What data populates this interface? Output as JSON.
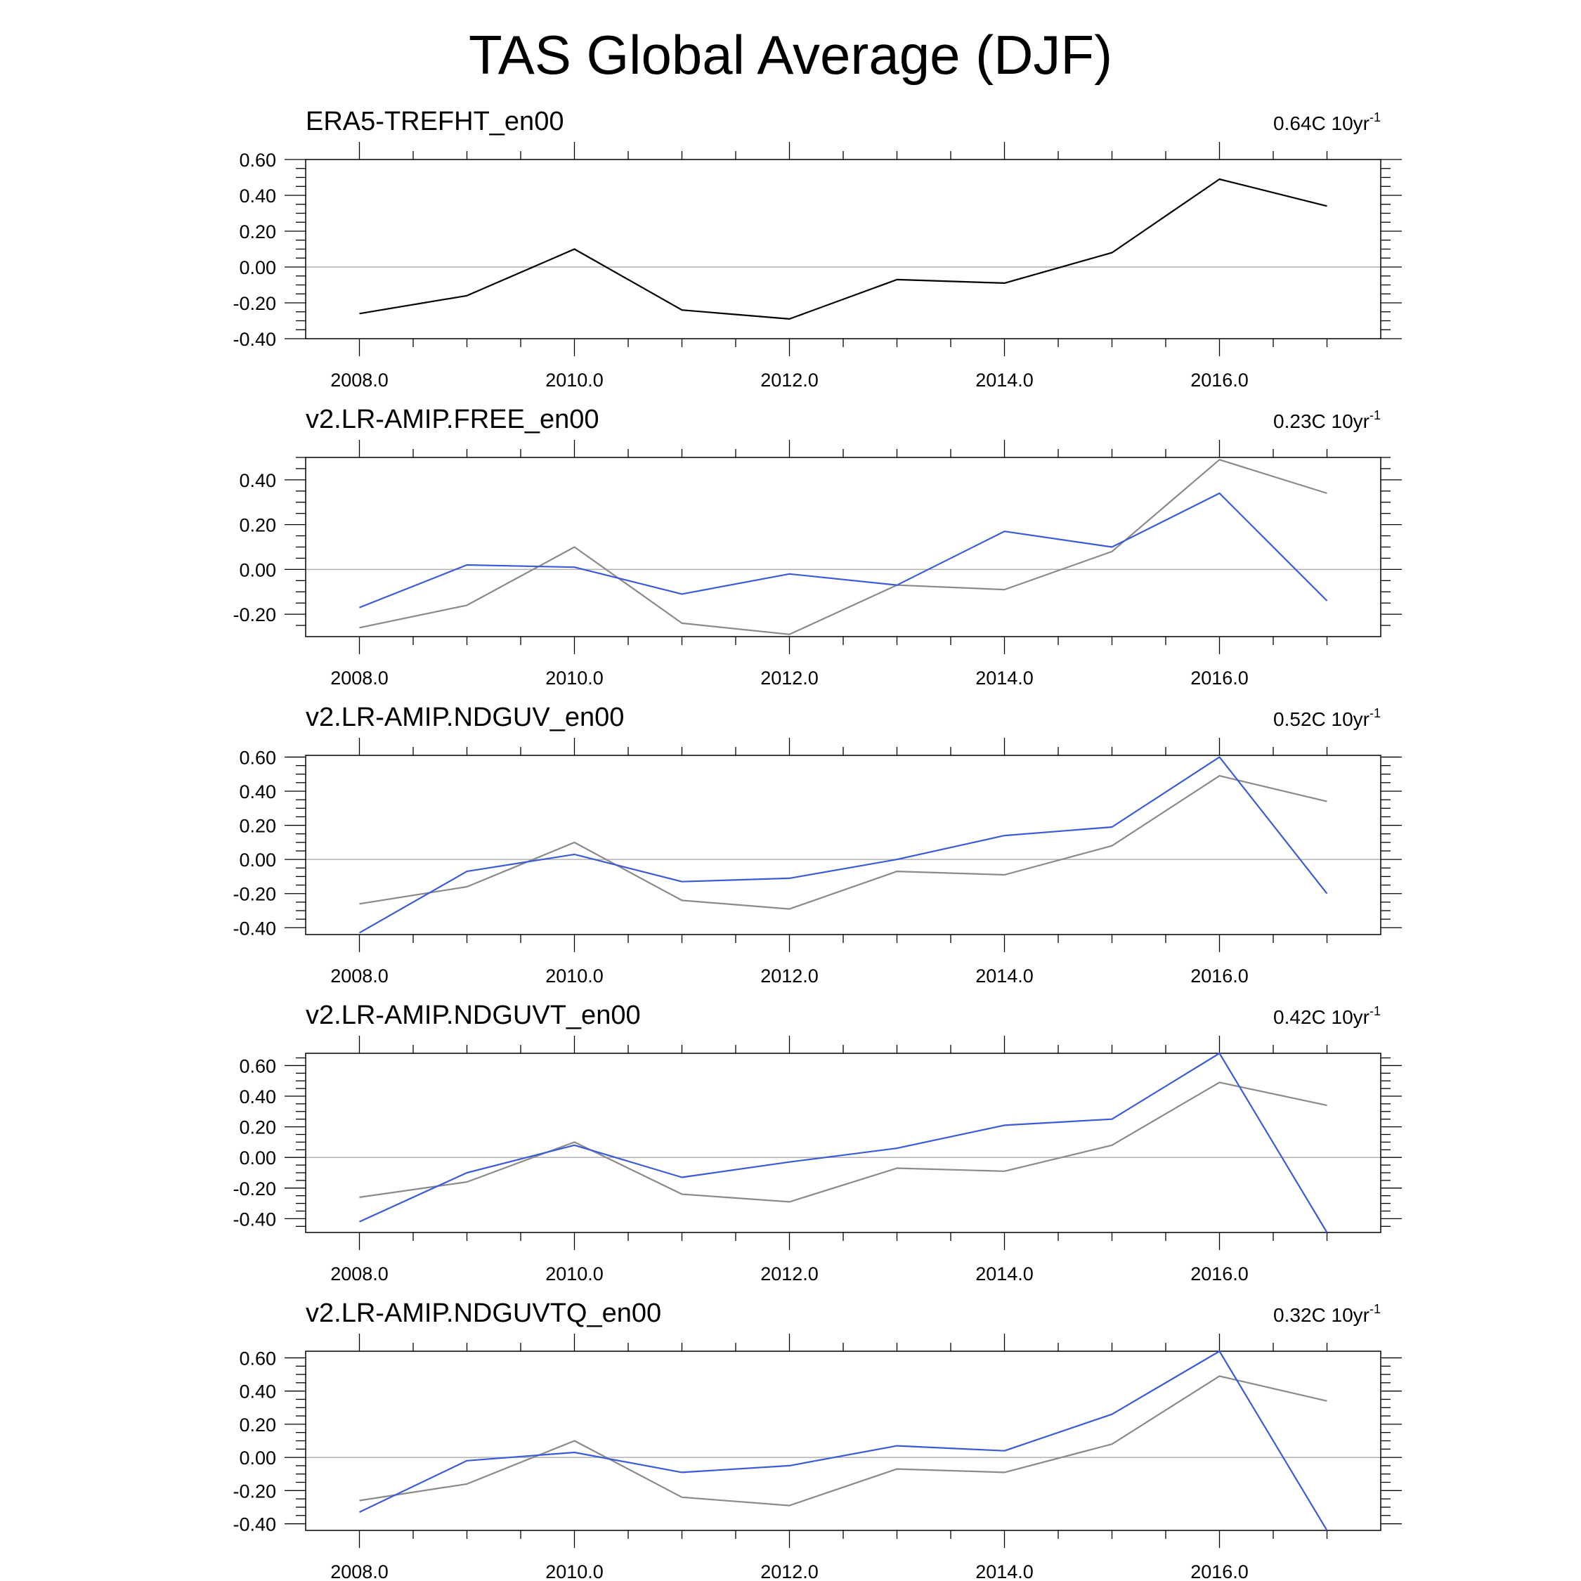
{
  "title": "TAS Global Average (DJF)",
  "colors": {
    "reference": "#8a8a8a",
    "reference_top": "#000000",
    "model": "#3a5bd9",
    "zero_line": "#b0b0b0",
    "frame": "#000000"
  },
  "chart_data": [
    {
      "type": "line",
      "title": "ERA5-TREFHT_en00",
      "trend_value": "0.64C 10yr",
      "trend_exp": "-1",
      "x": [
        2008,
        2009,
        2010,
        2011,
        2012,
        2013,
        2014,
        2015,
        2016,
        2017
      ],
      "xticks": [
        "2008.0",
        "2010.0",
        "2012.0",
        "2014.0",
        "2016.0"
      ],
      "xticks_values": [
        2008,
        2010,
        2012,
        2014,
        2016
      ],
      "xlim": [
        2007.5,
        2017.5
      ],
      "ylim": [
        -0.4,
        0.6
      ],
      "yticks": [
        "0.60",
        "0.40",
        "0.20",
        "0.00",
        "-0.20",
        "-0.40"
      ],
      "yticks_values": [
        0.6,
        0.4,
        0.2,
        0.0,
        -0.2,
        -0.4
      ],
      "series": [
        {
          "name": "ERA5-TREFHT",
          "role": "reference_top",
          "values": [
            -0.26,
            -0.16,
            0.1,
            -0.24,
            -0.29,
            -0.07,
            -0.09,
            0.08,
            0.49,
            0.34
          ]
        }
      ]
    },
    {
      "type": "line",
      "title": "v2.LR-AMIP.FREE_en00",
      "trend_value": "0.23C 10yr",
      "trend_exp": "-1",
      "x": [
        2008,
        2009,
        2010,
        2011,
        2012,
        2013,
        2014,
        2015,
        2016,
        2017
      ],
      "xticks": [
        "2008.0",
        "2010.0",
        "2012.0",
        "2014.0",
        "2016.0"
      ],
      "xticks_values": [
        2008,
        2010,
        2012,
        2014,
        2016
      ],
      "xlim": [
        2007.5,
        2017.5
      ],
      "ylim": [
        -0.3,
        0.5
      ],
      "yticks": [
        "0.40",
        "0.20",
        "0.00",
        "-0.20"
      ],
      "yticks_values": [
        0.4,
        0.2,
        0.0,
        -0.2
      ],
      "series": [
        {
          "name": "ERA5-TREFHT",
          "role": "reference",
          "values": [
            -0.26,
            -0.16,
            0.1,
            -0.24,
            -0.29,
            -0.07,
            -0.09,
            0.08,
            0.49,
            0.34
          ]
        },
        {
          "name": "v2.LR-AMIP.FREE",
          "role": "model",
          "values": [
            -0.17,
            0.02,
            0.01,
            -0.11,
            -0.02,
            -0.07,
            0.17,
            0.1,
            0.34,
            -0.14
          ]
        }
      ]
    },
    {
      "type": "line",
      "title": "v2.LR-AMIP.NDGUV_en00",
      "trend_value": "0.52C 10yr",
      "trend_exp": "-1",
      "x": [
        2008,
        2009,
        2010,
        2011,
        2012,
        2013,
        2014,
        2015,
        2016,
        2017
      ],
      "xticks": [
        "2008.0",
        "2010.0",
        "2012.0",
        "2014.0",
        "2016.0"
      ],
      "xticks_values": [
        2008,
        2010,
        2012,
        2014,
        2016
      ],
      "xlim": [
        2007.5,
        2017.5
      ],
      "ylim": [
        -0.44,
        0.61
      ],
      "yticks": [
        "0.60",
        "0.40",
        "0.20",
        "0.00",
        "-0.20",
        "-0.40"
      ],
      "yticks_values": [
        0.6,
        0.4,
        0.2,
        0.0,
        -0.2,
        -0.4
      ],
      "series": [
        {
          "name": "ERA5-TREFHT",
          "role": "reference",
          "values": [
            -0.26,
            -0.16,
            0.1,
            -0.24,
            -0.29,
            -0.07,
            -0.09,
            0.08,
            0.49,
            0.34
          ]
        },
        {
          "name": "v2.LR-AMIP.NDGUV",
          "role": "model",
          "values": [
            -0.43,
            -0.07,
            0.03,
            -0.13,
            -0.11,
            0.0,
            0.14,
            0.19,
            0.6,
            -0.2
          ]
        }
      ]
    },
    {
      "type": "line",
      "title": "v2.LR-AMIP.NDGUVT_en00",
      "trend_value": "0.42C 10yr",
      "trend_exp": "-1",
      "x": [
        2008,
        2009,
        2010,
        2011,
        2012,
        2013,
        2014,
        2015,
        2016,
        2017
      ],
      "xticks": [
        "2008.0",
        "2010.0",
        "2012.0",
        "2014.0",
        "2016.0"
      ],
      "xticks_values": [
        2008,
        2010,
        2012,
        2014,
        2016
      ],
      "xlim": [
        2007.5,
        2017.5
      ],
      "ylim": [
        -0.49,
        0.68
      ],
      "yticks": [
        "0.60",
        "0.40",
        "0.20",
        "0.00",
        "-0.20",
        "-0.40"
      ],
      "yticks_values": [
        0.6,
        0.4,
        0.2,
        0.0,
        -0.2,
        -0.4
      ],
      "series": [
        {
          "name": "ERA5-TREFHT",
          "role": "reference",
          "values": [
            -0.26,
            -0.16,
            0.1,
            -0.24,
            -0.29,
            -0.07,
            -0.09,
            0.08,
            0.49,
            0.34
          ]
        },
        {
          "name": "v2.LR-AMIP.NDGUVT",
          "role": "model",
          "values": [
            -0.42,
            -0.1,
            0.08,
            -0.13,
            -0.03,
            0.06,
            0.21,
            0.25,
            0.68,
            -0.49
          ]
        }
      ]
    },
    {
      "type": "line",
      "title": "v2.LR-AMIP.NDGUVTQ_en00",
      "trend_value": "0.32C 10yr",
      "trend_exp": "-1",
      "x": [
        2008,
        2009,
        2010,
        2011,
        2012,
        2013,
        2014,
        2015,
        2016,
        2017
      ],
      "xticks": [
        "2008.0",
        "2010.0",
        "2012.0",
        "2014.0",
        "2016.0"
      ],
      "xticks_values": [
        2008,
        2010,
        2012,
        2014,
        2016
      ],
      "xlim": [
        2007.5,
        2017.5
      ],
      "ylim": [
        -0.44,
        0.64
      ],
      "yticks": [
        "0.60",
        "0.40",
        "0.20",
        "0.00",
        "-0.20",
        "-0.40"
      ],
      "yticks_values": [
        0.6,
        0.4,
        0.2,
        0.0,
        -0.2,
        -0.4
      ],
      "series": [
        {
          "name": "ERA5-TREFHT",
          "role": "reference",
          "values": [
            -0.26,
            -0.16,
            0.1,
            -0.24,
            -0.29,
            -0.07,
            -0.09,
            0.08,
            0.49,
            0.34
          ]
        },
        {
          "name": "v2.LR-AMIP.NDGUVTQ",
          "role": "model",
          "values": [
            -0.33,
            -0.02,
            0.03,
            -0.09,
            -0.05,
            0.07,
            0.04,
            0.26,
            0.64,
            -0.44
          ]
        }
      ]
    }
  ]
}
